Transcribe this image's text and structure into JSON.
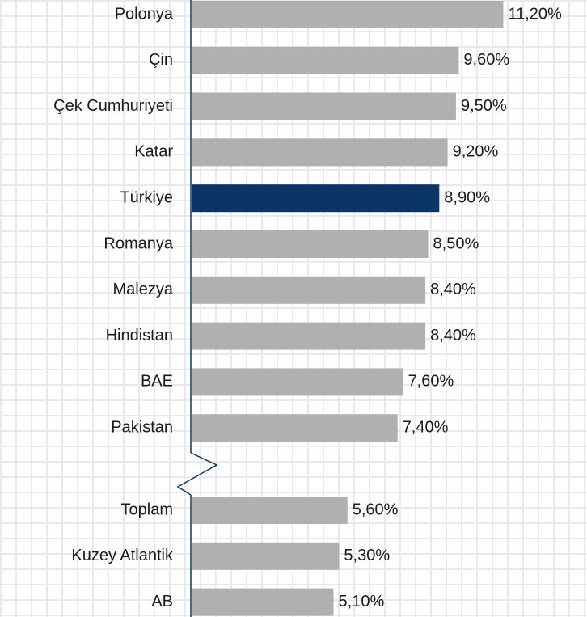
{
  "chart_data": {
    "type": "bar",
    "orientation": "horizontal",
    "categories": [
      "Polonya",
      "Çin",
      "Çek Cumhuriyeti",
      "Katar",
      "Türkiye",
      "Romanya",
      "Malezya",
      "Hindistan",
      "BAE",
      "Pakistan",
      "Toplam",
      "Kuzey Atlantik",
      "AB"
    ],
    "values": [
      11.2,
      9.6,
      9.5,
      9.2,
      8.9,
      8.5,
      8.4,
      8.4,
      7.6,
      7.4,
      5.6,
      5.3,
      5.1
    ],
    "value_labels": [
      "11,20%",
      "9,60%",
      "9,50%",
      "9,20%",
      "8,90%",
      "8,50%",
      "8,40%",
      "8,40%",
      "7,60%",
      "7,40%",
      "5,60%",
      "5,30%",
      "5,10%"
    ],
    "colors": [
      "#b0b0b0",
      "#b0b0b0",
      "#b0b0b0",
      "#b0b0b0",
      "#0b3566",
      "#b0b0b0",
      "#b0b0b0",
      "#b0b0b0",
      "#b0b0b0",
      "#b0b0b0",
      "#b0b0b0",
      "#b0b0b0",
      "#b0b0b0"
    ],
    "xlim": [
      0,
      12
    ]
  }
}
